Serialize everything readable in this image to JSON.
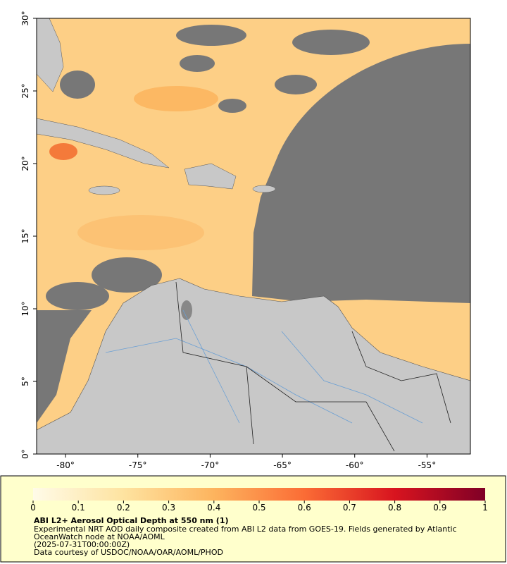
{
  "map": {
    "xlim": [
      -82,
      -52
    ],
    "ylim": [
      0,
      30
    ],
    "xticks": [
      {
        "value": -80,
        "label": "-80°"
      },
      {
        "value": -75,
        "label": "-75°"
      },
      {
        "value": -70,
        "label": "-70°"
      },
      {
        "value": -65,
        "label": "-65°"
      },
      {
        "value": -60,
        "label": "-60°"
      },
      {
        "value": -55,
        "label": "-55°"
      }
    ],
    "yticks": [
      {
        "value": 0,
        "label": "0°"
      },
      {
        "value": 5,
        "label": "5°"
      },
      {
        "value": 10,
        "label": "10°"
      },
      {
        "value": 15,
        "label": "15°"
      },
      {
        "value": 20,
        "label": "20°"
      },
      {
        "value": 25,
        "label": "25°"
      },
      {
        "value": 30,
        "label": "30°"
      }
    ]
  },
  "colorbar": {
    "lim": [
      0,
      1
    ],
    "ticks": [
      0,
      0.1,
      0.2,
      0.3,
      0.4,
      0.5,
      0.6,
      0.7,
      0.8,
      0.9,
      1
    ]
  },
  "caption": {
    "title": "ABI L2+ Aerosol Optical Depth at 550 nm (1)",
    "lines": [
      "Experimental NRT AOD daily composite created from ABI L2 data from GOES-19. Fields generated by Atlantic",
      "OceanWatch node at NOAA/AOML",
      "(2025-07-31T00:00:00Z)",
      "Data courtesy of USDOC/NOAA/OAR/AOML/PHOD"
    ]
  }
}
